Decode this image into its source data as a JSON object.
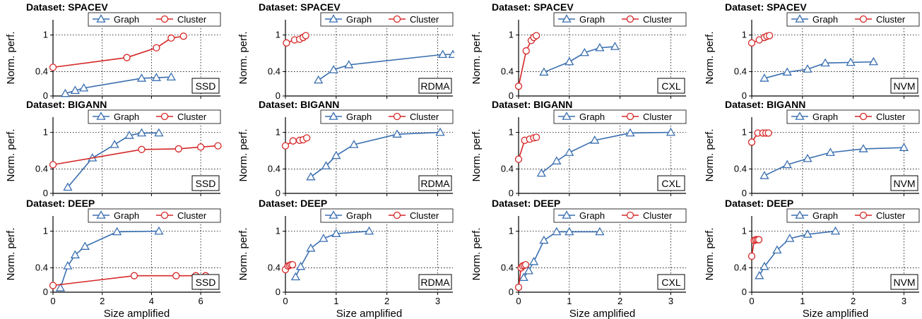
{
  "figure": {
    "xlabel": "Size amplified",
    "ylabel": "Norm. perf.",
    "colors": {
      "graph": "#3a6fb0",
      "cluster": "#d62728",
      "grid": "#000000"
    }
  },
  "chart_data": [
    {
      "type": "line",
      "title": "Dataset: SPACEV",
      "medium": "SSD",
      "xlim": [
        0,
        6.8
      ],
      "ylim": [
        0,
        1.25
      ],
      "xticks": [
        0,
        2,
        4,
        6
      ],
      "yticks": [
        0,
        0.4,
        1
      ],
      "series": [
        {
          "name": "Graph",
          "marker": "triangle",
          "x": [
            0.5,
            0.9,
            1.25,
            3.6,
            4.2,
            4.8
          ],
          "y": [
            0.04,
            0.09,
            0.13,
            0.29,
            0.3,
            0.31
          ]
        },
        {
          "name": "Cluster",
          "marker": "circle",
          "x": [
            0,
            3.0,
            4.2,
            4.8,
            5.3
          ],
          "y": [
            0.47,
            0.63,
            0.79,
            0.95,
            0.98
          ]
        }
      ]
    },
    {
      "type": "line",
      "title": "Dataset: SPACEV",
      "medium": "RDMA",
      "xlim": [
        0,
        3.3
      ],
      "ylim": [
        0,
        1.25
      ],
      "xticks": [
        0,
        1,
        2,
        3
      ],
      "yticks": [
        0,
        0.4,
        1
      ],
      "series": [
        {
          "name": "Graph",
          "marker": "triangle",
          "x": [
            0.65,
            0.95,
            1.25,
            3.1,
            3.3
          ],
          "y": [
            0.26,
            0.43,
            0.51,
            0.68,
            0.68
          ]
        },
        {
          "name": "Cluster",
          "marker": "circle",
          "x": [
            0.02,
            0.18,
            0.28,
            0.35,
            0.4
          ],
          "y": [
            0.87,
            0.92,
            0.93,
            0.96,
            0.99
          ]
        }
      ]
    },
    {
      "type": "line",
      "title": "Dataset: SPACEV",
      "medium": "CXL",
      "xlim": [
        0,
        3.3
      ],
      "ylim": [
        0,
        1.25
      ],
      "xticks": [
        0,
        1,
        2,
        3
      ],
      "yticks": [
        0,
        0.4,
        1
      ],
      "series": [
        {
          "name": "Graph",
          "marker": "triangle",
          "x": [
            0.5,
            1.0,
            1.3,
            1.6,
            1.9
          ],
          "y": [
            0.39,
            0.56,
            0.71,
            0.79,
            0.81
          ]
        },
        {
          "name": "Cluster",
          "marker": "circle",
          "x": [
            0.0,
            0.15,
            0.25,
            0.3,
            0.35
          ],
          "y": [
            0.16,
            0.74,
            0.91,
            0.96,
            0.99
          ]
        }
      ]
    },
    {
      "type": "line",
      "title": "Dataset: SPACEV",
      "medium": "NVM",
      "xlim": [
        0,
        3.3
      ],
      "ylim": [
        0,
        1.25
      ],
      "xticks": [
        0,
        1,
        2,
        3
      ],
      "yticks": [
        0,
        0.4,
        1
      ],
      "series": [
        {
          "name": "Graph",
          "marker": "triangle",
          "x": [
            0.25,
            0.7,
            1.1,
            1.45,
            1.95,
            2.4
          ],
          "y": [
            0.29,
            0.39,
            0.44,
            0.54,
            0.55,
            0.56
          ]
        },
        {
          "name": "Cluster",
          "marker": "circle",
          "x": [
            0.0,
            0.15,
            0.25,
            0.3,
            0.35
          ],
          "y": [
            0.87,
            0.92,
            0.96,
            0.98,
            0.99
          ]
        }
      ]
    },
    {
      "type": "line",
      "title": "Dataset: BIGANN",
      "medium": "SSD",
      "xlim": [
        0,
        6.8
      ],
      "ylim": [
        0,
        1.25
      ],
      "xticks": [
        0,
        2,
        4,
        6
      ],
      "yticks": [
        0,
        0.4,
        1
      ],
      "series": [
        {
          "name": "Graph",
          "marker": "triangle",
          "x": [
            0.6,
            1.6,
            2.5,
            3.1,
            3.6,
            4.3
          ],
          "y": [
            0.1,
            0.58,
            0.8,
            0.95,
            0.99,
            0.99
          ]
        },
        {
          "name": "Cluster",
          "marker": "circle",
          "x": [
            0,
            3.6,
            5.1,
            6.0,
            6.7
          ],
          "y": [
            0.47,
            0.72,
            0.73,
            0.76,
            0.78
          ]
        }
      ]
    },
    {
      "type": "line",
      "title": "Dataset: BIGANN",
      "medium": "RDMA",
      "xlim": [
        0,
        3.3
      ],
      "ylim": [
        0,
        1.25
      ],
      "xticks": [
        0,
        1,
        2,
        3
      ],
      "yticks": [
        0,
        0.4,
        1
      ],
      "series": [
        {
          "name": "Graph",
          "marker": "triangle",
          "x": [
            0.5,
            0.8,
            1.0,
            1.35,
            2.2,
            3.05
          ],
          "y": [
            0.27,
            0.45,
            0.62,
            0.8,
            0.97,
            1.0
          ]
        },
        {
          "name": "Cluster",
          "marker": "circle",
          "x": [
            0.0,
            0.15,
            0.28,
            0.35,
            0.42
          ],
          "y": [
            0.78,
            0.86,
            0.87,
            0.88,
            0.91
          ]
        }
      ]
    },
    {
      "type": "line",
      "title": "Dataset: BIGANN",
      "medium": "CXL",
      "xlim": [
        0,
        3.3
      ],
      "ylim": [
        0,
        1.25
      ],
      "xticks": [
        0,
        1,
        2,
        3
      ],
      "yticks": [
        0,
        0.4,
        1
      ],
      "series": [
        {
          "name": "Graph",
          "marker": "triangle",
          "x": [
            0.45,
            0.75,
            1.0,
            1.5,
            2.2,
            3.0
          ],
          "y": [
            0.33,
            0.53,
            0.67,
            0.87,
            0.99,
            1.0
          ]
        },
        {
          "name": "Cluster",
          "marker": "circle",
          "x": [
            0.0,
            0.12,
            0.22,
            0.3,
            0.35
          ],
          "y": [
            0.56,
            0.87,
            0.89,
            0.91,
            0.92
          ]
        }
      ]
    },
    {
      "type": "line",
      "title": "Dataset: BIGANN",
      "medium": "NVM",
      "xlim": [
        0,
        3.3
      ],
      "ylim": [
        0,
        1.25
      ],
      "xticks": [
        0,
        1,
        2,
        3
      ],
      "yticks": [
        0,
        0.4,
        1
      ],
      "series": [
        {
          "name": "Graph",
          "marker": "triangle",
          "x": [
            0.25,
            0.7,
            1.1,
            1.55,
            2.2,
            3.0
          ],
          "y": [
            0.29,
            0.47,
            0.57,
            0.67,
            0.73,
            0.75
          ]
        },
        {
          "name": "Cluster",
          "marker": "circle",
          "x": [
            0.0,
            0.12,
            0.22,
            0.28,
            0.33
          ],
          "y": [
            0.84,
            0.99,
            0.99,
            0.99,
            0.99
          ]
        }
      ]
    },
    {
      "type": "line",
      "title": "Dataset: DEEP",
      "medium": "SSD",
      "xlim": [
        0,
        6.8
      ],
      "ylim": [
        0,
        1.25
      ],
      "xticks": [
        0,
        2,
        4,
        6
      ],
      "yticks": [
        0,
        0.4,
        1
      ],
      "series": [
        {
          "name": "Graph",
          "marker": "triangle",
          "x": [
            0.3,
            0.6,
            0.9,
            1.3,
            2.6,
            4.3
          ],
          "y": [
            0.07,
            0.43,
            0.61,
            0.75,
            0.99,
            1.0
          ]
        },
        {
          "name": "Cluster",
          "marker": "circle",
          "x": [
            0,
            3.3,
            5.0,
            5.8,
            6.2
          ],
          "y": [
            0.11,
            0.27,
            0.27,
            0.27,
            0.27
          ]
        }
      ]
    },
    {
      "type": "line",
      "title": "Dataset: DEEP",
      "medium": "RDMA",
      "xlim": [
        0,
        3.3
      ],
      "ylim": [
        0,
        1.25
      ],
      "xticks": [
        0,
        1,
        2,
        3
      ],
      "yticks": [
        0,
        0.4,
        1
      ],
      "series": [
        {
          "name": "Graph",
          "marker": "triangle",
          "x": [
            0.2,
            0.3,
            0.5,
            0.75,
            1.0,
            1.65
          ],
          "y": [
            0.25,
            0.42,
            0.72,
            0.88,
            0.96,
            1.0
          ]
        },
        {
          "name": "Cluster",
          "marker": "circle",
          "x": [
            0.0,
            0.05,
            0.08,
            0.11,
            0.14
          ],
          "y": [
            0.37,
            0.43,
            0.44,
            0.45,
            0.45
          ]
        }
      ]
    },
    {
      "type": "line",
      "title": "Dataset: DEEP",
      "medium": "CXL",
      "xlim": [
        0,
        3.3
      ],
      "ylim": [
        0,
        1.25
      ],
      "xticks": [
        0,
        1,
        2,
        3
      ],
      "yticks": [
        0,
        0.4,
        1
      ],
      "series": [
        {
          "name": "Graph",
          "marker": "triangle",
          "x": [
            0.1,
            0.2,
            0.3,
            0.5,
            0.75,
            1.0,
            1.6
          ],
          "y": [
            0.24,
            0.35,
            0.5,
            0.85,
            0.99,
            0.99,
            0.99
          ]
        },
        {
          "name": "Cluster",
          "marker": "circle",
          "x": [
            0.0,
            0.05,
            0.08,
            0.11,
            0.14
          ],
          "y": [
            0.08,
            0.4,
            0.43,
            0.44,
            0.45
          ]
        }
      ]
    },
    {
      "type": "line",
      "title": "Dataset: DEEP",
      "medium": "NVM",
      "xlim": [
        0,
        3.3
      ],
      "ylim": [
        0,
        1.25
      ],
      "xticks": [
        0,
        1,
        2,
        3
      ],
      "yticks": [
        0,
        0.4,
        1
      ],
      "series": [
        {
          "name": "Graph",
          "marker": "triangle",
          "x": [
            0.15,
            0.25,
            0.5,
            0.75,
            1.1,
            1.65
          ],
          "y": [
            0.27,
            0.42,
            0.69,
            0.88,
            0.95,
            1.0
          ]
        },
        {
          "name": "Cluster",
          "marker": "circle",
          "x": [
            0.0,
            0.05,
            0.08,
            0.11,
            0.14
          ],
          "y": [
            0.59,
            0.85,
            0.86,
            0.86,
            0.86
          ]
        }
      ]
    }
  ]
}
